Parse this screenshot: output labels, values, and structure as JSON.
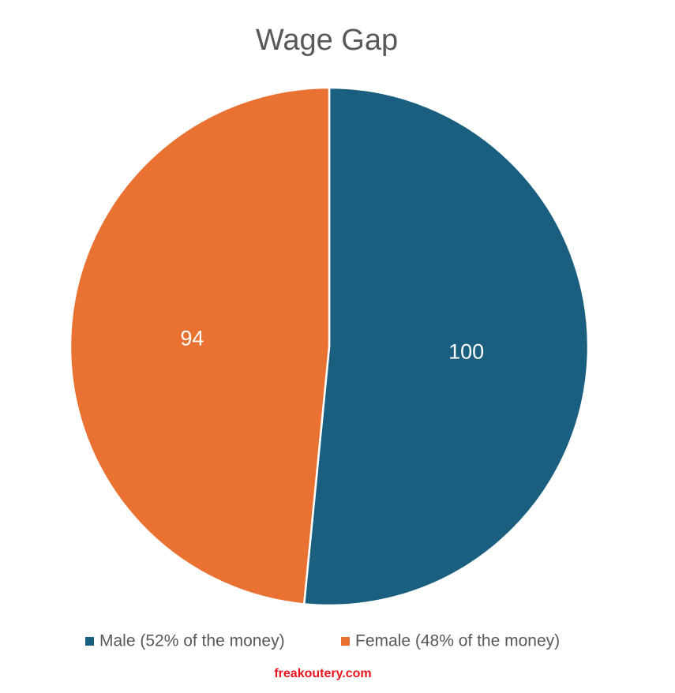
{
  "chart_data": {
    "type": "pie",
    "title": "Wage Gap",
    "categories": [
      "Male (52% of the money)",
      "Female (48% of the money)"
    ],
    "values": [
      100,
      94
    ],
    "colors": [
      "#1a5f80",
      "#e97132"
    ],
    "legend": "bottom",
    "annotations": [
      "freakoutery.com"
    ]
  }
}
